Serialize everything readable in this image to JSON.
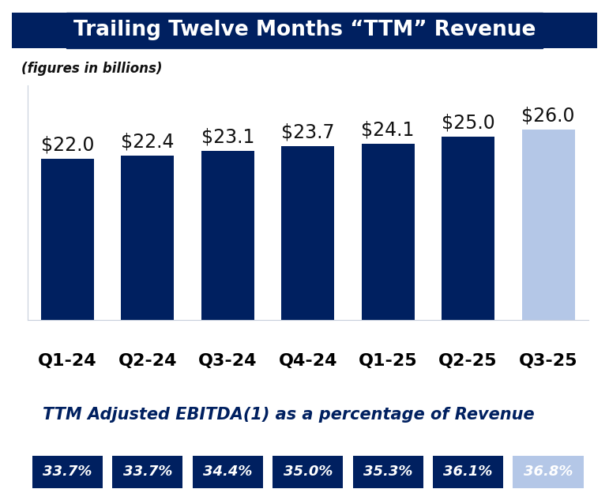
{
  "chart_data": {
    "type": "bar",
    "title": "Trailing Twelve Months “TTM” Revenue",
    "subtitle": "(figures in billions)",
    "categories": [
      "Q1-24",
      "Q2-24",
      "Q3-24",
      "Q4-24",
      "Q1-25",
      "Q2-25",
      "Q3-25"
    ],
    "values": [
      22.0,
      22.4,
      23.1,
      23.7,
      24.1,
      25.0,
      26.0
    ],
    "value_labels": [
      "$22.0",
      "$22.4",
      "$23.1",
      "$23.7",
      "$24.1",
      "$25.0",
      "$26.0"
    ],
    "colors": [
      "#002060",
      "#002060",
      "#002060",
      "#002060",
      "#002060",
      "#002060",
      "#b4c7e7"
    ],
    "ylim": [
      0,
      32
    ],
    "data_labels": true,
    "tick_labels": "x",
    "grid": false,
    "ebitda": {
      "title": "TTM Adjusted EBITDA(1) as a percentage of Revenue",
      "values": [
        33.7,
        33.7,
        34.4,
        35.0,
        35.3,
        36.1,
        36.8
      ],
      "value_labels": [
        "33.7%",
        "33.7%",
        "34.4%",
        "35.0%",
        "35.3%",
        "36.1%",
        "36.8%"
      ]
    }
  }
}
